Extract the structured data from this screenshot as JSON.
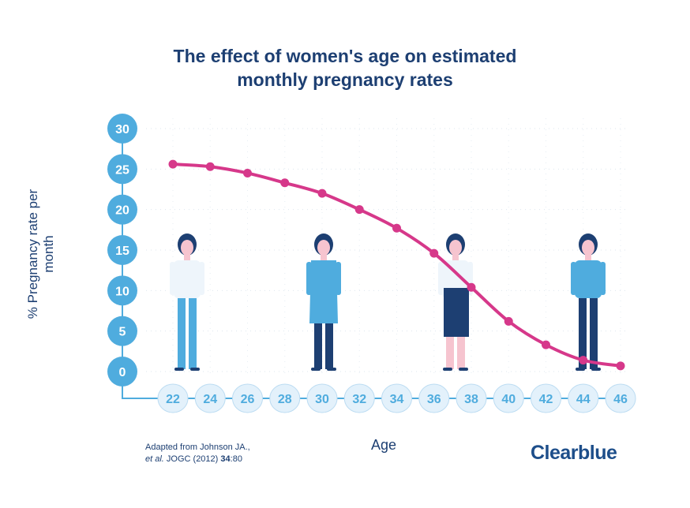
{
  "chart_data": {
    "type": "line",
    "title_line1": "The effect of women's age on estimated",
    "title_line2": "monthly pregnancy rates",
    "xlabel": "Age",
    "ylabel": "% Pregnancy rate per month",
    "x": [
      22,
      24,
      26,
      28,
      30,
      32,
      34,
      36,
      38,
      40,
      42,
      44,
      46
    ],
    "values": [
      25.6,
      25.3,
      24.5,
      23.3,
      22.0,
      20.0,
      17.7,
      14.6,
      10.4,
      6.2,
      3.3,
      1.4,
      0.7
    ],
    "yticks": [
      0,
      5,
      10,
      15,
      20,
      25,
      30
    ],
    "ylim": [
      0,
      30
    ],
    "xlim": [
      22,
      46
    ],
    "grid": true,
    "colors": {
      "line": "#d6388a",
      "axis": "#4facde",
      "xbubble": "#e3f1fb",
      "text": "#1d3f72"
    }
  },
  "source": {
    "line1": "Adapted from Johnson JA.,",
    "line2_italic": "et al.",
    "line2_rest": " JOGC (2012) ",
    "line2_bold": "34",
    "line2_end": ":80"
  },
  "logo": "Clearblue"
}
